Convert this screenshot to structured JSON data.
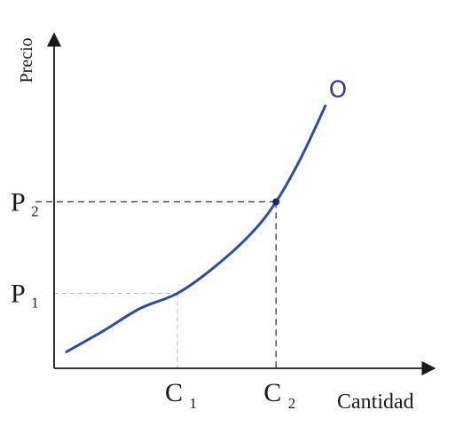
{
  "chart_data": {
    "type": "line",
    "title": "",
    "xlabel": "Cantidad",
    "ylabel": "Precio",
    "grid": false,
    "legend": "none",
    "curve_label": "O",
    "colors": {
      "curve": "#2a4f9c",
      "curve_label": "#2d3c9b",
      "axis": "#1a1a1a",
      "guide_p1": "#b8b8b8",
      "guide_p2": "#333333",
      "marker": "#1a237e"
    },
    "series": [
      {
        "name": "",
        "x": [
          0.1,
          0.4,
          0.7,
          1.0,
          1.3,
          1.6,
          1.8,
          2.0,
          2.2
        ],
        "y": [
          0.22,
          0.5,
          0.8,
          1.0,
          1.35,
          1.8,
          2.22,
          2.8,
          3.5
        ]
      }
    ],
    "points": [
      {
        "x_label": "C",
        "x_sub": "1",
        "y_label": "P",
        "y_sub": "1",
        "x": 1.0,
        "y": 1.0,
        "marker": false
      },
      {
        "x_label": "C",
        "x_sub": "2",
        "y_label": "P",
        "y_sub": "2",
        "x": 1.8,
        "y": 2.22,
        "marker": true
      }
    ]
  }
}
